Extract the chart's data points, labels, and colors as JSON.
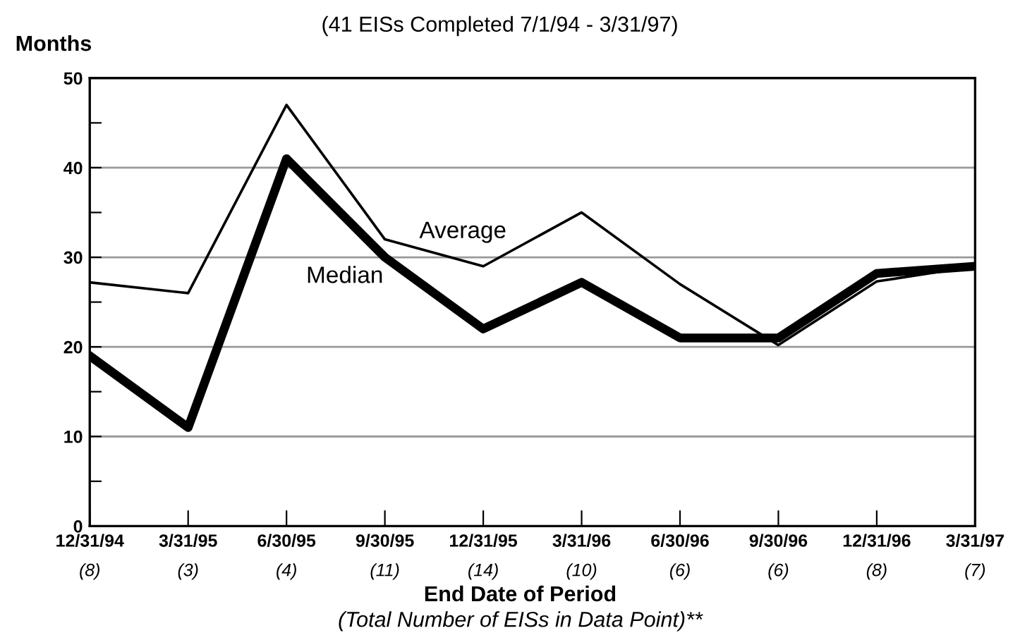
{
  "chart_data": {
    "type": "line",
    "subtitle": "(41 EISs Completed 7/1/94 - 3/31/97)",
    "ylabel": "Months",
    "xlabel": "End Date of Period",
    "annotations": [
      "(Total Number of EISs in Data Point)**"
    ],
    "categories": [
      "12/31/94\n(8)",
      "3/31/95\n(3)",
      "6/30/95\n(4)",
      "9/30/95\n(11)",
      "12/31/95\n(14)",
      "3/31/96\n(10)",
      "6/30/96\n(6)",
      "9/30/96\n(6)",
      "12/31/96\n(8)",
      "3/31/97\n(7)"
    ],
    "series": [
      {
        "name": "Average",
        "color": "#000000",
        "values": [
          27.2,
          26,
          47,
          32,
          29,
          35,
          27,
          20.2,
          27.3,
          29
        ]
      },
      {
        "name": "Median",
        "color": "#000000",
        "values": [
          19,
          11,
          41,
          30,
          22,
          27.2,
          21,
          21,
          28.2,
          29
        ]
      }
    ],
    "ylim": [
      0,
      50
    ],
    "yticks": [
      0,
      {
        "value": 5,
        "label": null
      },
      10,
      {
        "value": 15,
        "label": null
      },
      20,
      {
        "value": 25,
        "label": null
      },
      30,
      {
        "value": 35,
        "label": null
      },
      40,
      {
        "value": 45,
        "label": null
      },
      50
    ],
    "grid": "y",
    "legend": false,
    "marker": "none",
    "line_style": "solid"
  }
}
